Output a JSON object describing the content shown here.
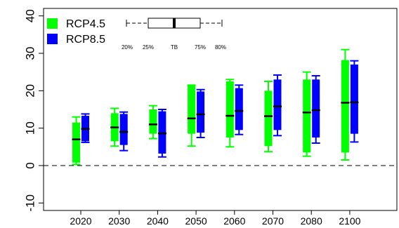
{
  "chart_data": {
    "type": "boxplot",
    "categories": [
      "2020",
      "2030",
      "2040",
      "2050",
      "2060",
      "2070",
      "2080",
      "2100"
    ],
    "ylim": [
      -12,
      42
    ],
    "yticks": [
      -10,
      0,
      10,
      20,
      30,
      40
    ],
    "reference_line": 0,
    "series": [
      {
        "name": "RCP4.5",
        "color": "#00ff00",
        "boxes": [
          {
            "whisker_low": 0.3,
            "q1": 0.8,
            "median": 7.0,
            "q3": 11.5,
            "whisker_high": 13.0
          },
          {
            "whisker_low": 5.2,
            "q1": 6.5,
            "median": 10.2,
            "q3": 14.0,
            "whisker_high": 15.3
          },
          {
            "whisker_low": 7.2,
            "q1": 8.5,
            "median": 11.0,
            "q3": 15.0,
            "whisker_high": 16.0
          },
          {
            "whisker_low": 5.2,
            "q1": 8.5,
            "median": 12.6,
            "q3": 21.5,
            "whisker_high": 21.5
          },
          {
            "whisker_low": 5.0,
            "q1": 7.5,
            "median": 13.3,
            "q3": 22.5,
            "whisker_high": 23.0
          },
          {
            "whisker_low": 3.7,
            "q1": 5.2,
            "median": 13.2,
            "q3": 20.0,
            "whisker_high": 22.5
          },
          {
            "whisker_low": 2.5,
            "q1": 3.5,
            "median": 14.2,
            "q3": 23.0,
            "whisker_high": 25.0
          },
          {
            "whisker_low": 1.5,
            "q1": 3.5,
            "median": 16.8,
            "q3": 28.2,
            "whisker_high": 31.0
          }
        ]
      },
      {
        "name": "RCP8.5",
        "color": "#0000ff",
        "boxes": [
          {
            "whisker_low": 6.2,
            "q1": 6.5,
            "median": 9.8,
            "q3": 13.3,
            "whisker_high": 13.8
          },
          {
            "whisker_low": 4.0,
            "q1": 5.5,
            "median": 9.0,
            "q3": 13.8,
            "whisker_high": 14.3
          },
          {
            "whisker_low": 2.3,
            "q1": 3.2,
            "median": 8.6,
            "q3": 14.5,
            "whisker_high": 15.0
          },
          {
            "whisker_low": 7.5,
            "q1": 8.8,
            "median": 13.7,
            "q3": 19.8,
            "whisker_high": 20.3
          },
          {
            "whisker_low": 8.3,
            "q1": 9.5,
            "median": 14.6,
            "q3": 20.7,
            "whisker_high": 21.5
          },
          {
            "whisker_low": 8.0,
            "q1": 9.5,
            "median": 15.8,
            "q3": 23.0,
            "whisker_high": 24.2
          },
          {
            "whisker_low": 6.0,
            "q1": 7.5,
            "median": 14.8,
            "q3": 23.0,
            "whisker_high": 24.0
          },
          {
            "whisker_low": 6.3,
            "q1": 8.5,
            "median": 16.9,
            "q3": 27.0,
            "whisker_high": 28.0
          }
        ]
      }
    ],
    "legend": {
      "position": "top-left",
      "entries": [
        "RCP4.5",
        "RCP8.5"
      ]
    },
    "box_key": {
      "labels": [
        "20%",
        "25%",
        "TB",
        "75%",
        "80%"
      ]
    },
    "grid": false
  }
}
